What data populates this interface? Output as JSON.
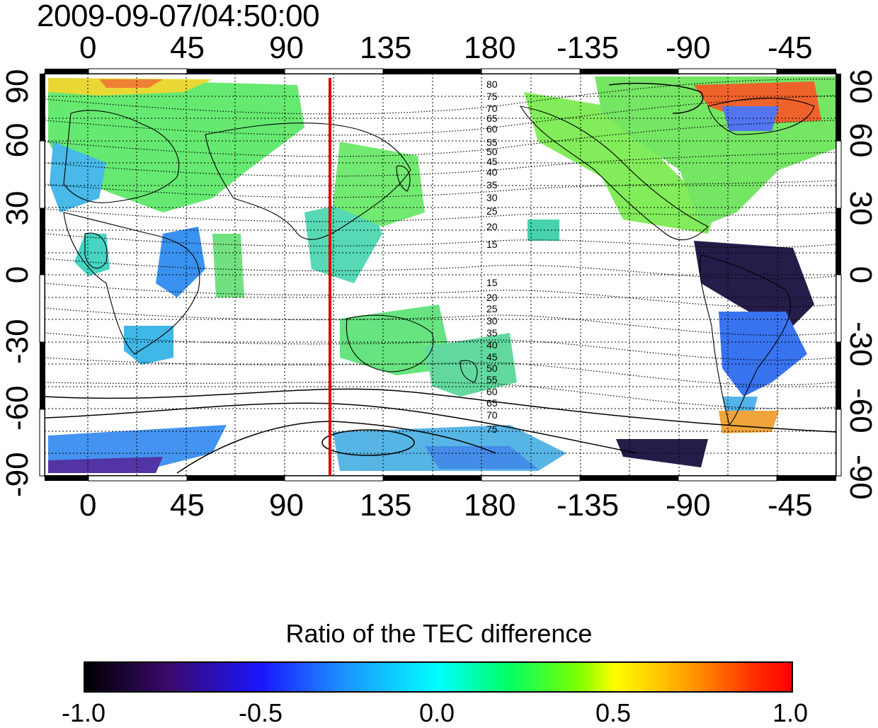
{
  "timestamp": "2009-09-07/04:50:00",
  "longitude_ticks": [
    "0",
    "45",
    "90",
    "135",
    "180",
    "-135",
    "-90",
    "-45"
  ],
  "latitude_ticks_left": [
    "90",
    "60",
    "30",
    "0",
    "-30",
    "-60",
    "-90"
  ],
  "latitude_ticks_right": [
    "90",
    "60",
    "30",
    "0",
    "-30",
    "-60",
    "-90"
  ],
  "contour_labels_north": [
    "80",
    "75",
    "70",
    "65",
    "60",
    "55",
    "50",
    "45",
    "40",
    "35",
    "30",
    "25",
    "20",
    "15"
  ],
  "contour_labels_south": [
    "15",
    "20",
    "25",
    "30",
    "35",
    "40",
    "45",
    "50",
    "55",
    "60",
    "65",
    "70",
    "75"
  ],
  "vertical_marker": {
    "longitude": 108,
    "color": "#e00000"
  },
  "colorbar": {
    "title": "Ratio of the TEC difference",
    "tick_labels": [
      "-1.0",
      "-0.5",
      "0.0",
      "0.5",
      "1.0"
    ],
    "range": [
      -1.0,
      1.0
    ]
  }
}
